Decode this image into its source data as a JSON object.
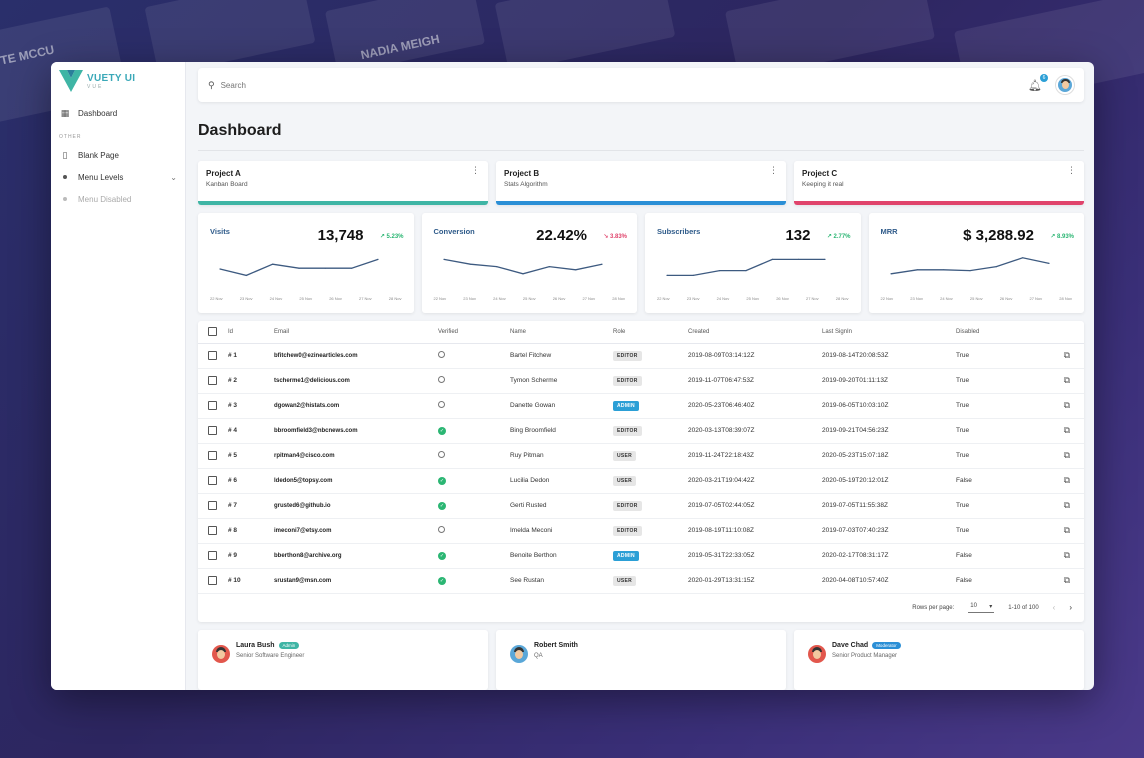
{
  "background": {
    "tile_1_name": "TE MCCU",
    "tile_2_name": "NADIA MEIGH"
  },
  "brand": {
    "title": "VUETY UI",
    "subtitle": "VUE"
  },
  "sidebar": {
    "dashboard": "Dashboard",
    "section": "OTHER",
    "blank_page": "Blank Page",
    "menu_levels": "Menu Levels",
    "menu_disabled": "Menu Disabled"
  },
  "topbar": {
    "search_placeholder": "Search",
    "notification_count": "6"
  },
  "page": {
    "title": "Dashboard"
  },
  "projects": [
    {
      "name": "Project A",
      "desc": "Kanban Board",
      "color": "#3fb5a5"
    },
    {
      "name": "Project B",
      "desc": "Stats Algorithm",
      "color": "#2b8fd6"
    },
    {
      "name": "Project C",
      "desc": "Keeping it real",
      "color": "#e0446c"
    }
  ],
  "chart_data": [
    {
      "type": "line",
      "title": "Visits",
      "value": "13,748",
      "change": "5.23%",
      "direction": "up",
      "x": [
        "22 Nov",
        "23 Nov",
        "24 Nov",
        "25 Nov",
        "26 Nov",
        "27 Nov",
        "28 Nov"
      ],
      "values": [
        30,
        22,
        36,
        31,
        31,
        31,
        42
      ],
      "ylim": [
        0,
        50
      ]
    },
    {
      "type": "line",
      "title": "Conversion",
      "value": "22.42%",
      "change": "3.83%",
      "direction": "down",
      "x": [
        "22 Nov",
        "23 Nov",
        "24 Nov",
        "25 Nov",
        "26 Nov",
        "27 Nov",
        "28 Nov"
      ],
      "values": [
        42,
        36,
        33,
        24,
        33,
        29,
        36
      ],
      "ylim": [
        0,
        50
      ]
    },
    {
      "type": "line",
      "title": "Subscribers",
      "value": "132",
      "change": "2.77%",
      "direction": "up",
      "x": [
        "22 Nov",
        "23 Nov",
        "24 Nov",
        "25 Nov",
        "26 Nov",
        "27 Nov",
        "28 Nov"
      ],
      "values": [
        22,
        22,
        28,
        28,
        42,
        42,
        42
      ],
      "ylim": [
        0,
        50
      ]
    },
    {
      "type": "line",
      "title": "MRR",
      "value": "$ 3,288.92",
      "change": "8.93%",
      "direction": "up",
      "x": [
        "22 Nov",
        "23 Nov",
        "24 Nov",
        "25 Nov",
        "26 Nov",
        "27 Nov",
        "28 Nov"
      ],
      "values": [
        24,
        29,
        29,
        28,
        33,
        44,
        37
      ],
      "ylim": [
        0,
        50
      ]
    }
  ],
  "table": {
    "headers": {
      "id": "Id",
      "email": "Email",
      "verified": "Verified",
      "name": "Name",
      "role": "Role",
      "created": "Created",
      "last_signin": "Last SignIn",
      "disabled": "Disabled"
    },
    "rows": [
      {
        "id": "# 1",
        "email": "bfitchew0@ezinearticles.com",
        "verified": false,
        "name": "Bartel Fitchew",
        "role": "EDITOR",
        "created": "2019-08-09T03:14:12Z",
        "last_signin": "2019-08-14T20:08:53Z",
        "disabled": "True"
      },
      {
        "id": "# 2",
        "email": "tscherme1@delicious.com",
        "verified": false,
        "name": "Tymon Scherme",
        "role": "EDITOR",
        "created": "2019-11-07T06:47:53Z",
        "last_signin": "2019-09-20T01:11:13Z",
        "disabled": "True"
      },
      {
        "id": "# 3",
        "email": "dgowan2@histats.com",
        "verified": false,
        "name": "Danette Gowan",
        "role": "ADMIN",
        "created": "2020-05-23T06:46:40Z",
        "last_signin": "2019-06-05T10:03:10Z",
        "disabled": "True"
      },
      {
        "id": "# 4",
        "email": "bbroomfield3@nbcnews.com",
        "verified": true,
        "name": "Bing Broomfield",
        "role": "EDITOR",
        "created": "2020-03-13T08:39:07Z",
        "last_signin": "2019-09-21T04:56:23Z",
        "disabled": "True"
      },
      {
        "id": "# 5",
        "email": "rpitman4@cisco.com",
        "verified": false,
        "name": "Ruy Pitman",
        "role": "USER",
        "created": "2019-11-24T22:18:43Z",
        "last_signin": "2020-05-23T15:07:18Z",
        "disabled": "True"
      },
      {
        "id": "# 6",
        "email": "ldedon5@topsy.com",
        "verified": true,
        "name": "Lucilia Dedon",
        "role": "USER",
        "created": "2020-03-21T19:04:42Z",
        "last_signin": "2020-05-19T20:12:01Z",
        "disabled": "False"
      },
      {
        "id": "# 7",
        "email": "grusted6@github.io",
        "verified": true,
        "name": "Gerti Rusted",
        "role": "EDITOR",
        "created": "2019-07-05T02:44:05Z",
        "last_signin": "2019-07-05T11:55:38Z",
        "disabled": "True"
      },
      {
        "id": "# 8",
        "email": "imeconi7@etsy.com",
        "verified": false,
        "name": "Imelda Meconi",
        "role": "EDITOR",
        "created": "2019-08-19T11:10:08Z",
        "last_signin": "2019-07-03T07:40:23Z",
        "disabled": "True"
      },
      {
        "id": "# 9",
        "email": "bberthon8@archive.org",
        "verified": true,
        "name": "Benoite Berthon",
        "role": "ADMIN",
        "created": "2019-05-31T22:33:05Z",
        "last_signin": "2020-02-17T08:31:17Z",
        "disabled": "False"
      },
      {
        "id": "# 10",
        "email": "srustan9@msn.com",
        "verified": true,
        "name": "See Rustan",
        "role": "USER",
        "created": "2020-01-29T13:31:15Z",
        "last_signin": "2020-04-08T10:57:40Z",
        "disabled": "False"
      }
    ],
    "pager": {
      "rows_per_page_label": "Rows per page:",
      "rows_per_page": "10",
      "range": "1-10 of 100"
    }
  },
  "people": [
    {
      "name": "Laura Bush",
      "badge": "Admin",
      "badge_color": "#3fb5a5",
      "role": "Senior Software Engineer",
      "avatar_color": "#e2574c"
    },
    {
      "name": "Robert Smith",
      "badge": "",
      "badge_color": "",
      "role": "QA",
      "avatar_color": "#5aa7d8"
    },
    {
      "name": "Dave Chad",
      "badge": "Moderator",
      "badge_color": "#2b8fd6",
      "role": "Senior Product Manager",
      "avatar_color": "#e2574c"
    }
  ]
}
